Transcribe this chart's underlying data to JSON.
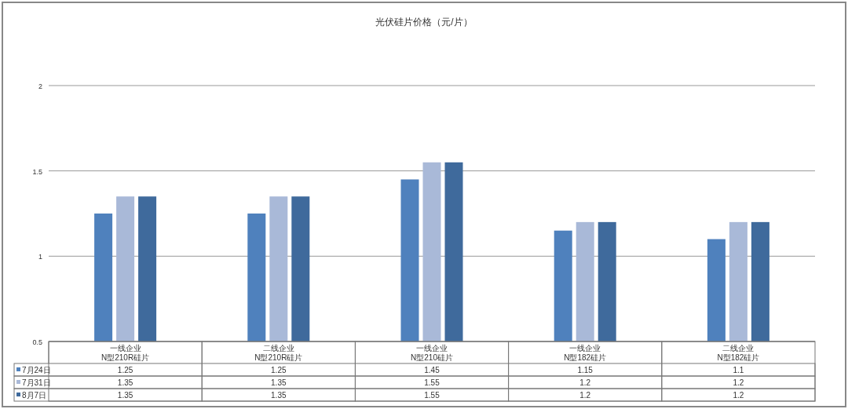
{
  "chart_data": {
    "type": "bar",
    "title": "光伏硅片价格（元/片）",
    "categories": [
      "一线企业\nN型210R硅片",
      "二线企业\nN型210R硅片",
      "一线企业\nN型210硅片",
      "一线企业\nN型182硅片",
      "二线企业\nN型182硅片"
    ],
    "series": [
      {
        "name": "7月24日",
        "color": "#4f81bd",
        "values": [
          1.25,
          1.25,
          1.45,
          1.15,
          1.1
        ]
      },
      {
        "name": "7月31日",
        "color": "#a9b9d8",
        "values": [
          1.35,
          1.35,
          1.55,
          1.2,
          1.2
        ]
      },
      {
        "name": "8月7日",
        "color": "#3f6a9c",
        "values": [
          1.35,
          1.35,
          1.55,
          1.2,
          1.2
        ]
      }
    ],
    "ylim": [
      0.5,
      2
    ],
    "yticks": [
      0.5,
      1,
      1.5,
      2
    ],
    "grid": "y",
    "data_labels": true,
    "legend": "bottom left"
  }
}
